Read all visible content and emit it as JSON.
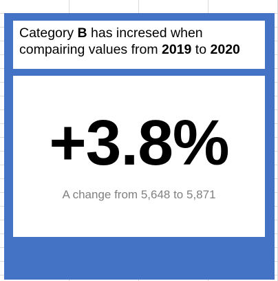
{
  "headline": {
    "prefix": "Category ",
    "category": "B",
    "middle": " has incresed when compairing values from ",
    "year_from": "2019",
    "connector": " to ",
    "year_to": "2020"
  },
  "metric": {
    "change_percent": "+3.8%",
    "change_prefix": "A change from ",
    "value_from": "5,648",
    "value_connector": " to ",
    "value_to": "5,871"
  },
  "colors": {
    "card_background": "#4472c4",
    "caption": "#808080"
  }
}
